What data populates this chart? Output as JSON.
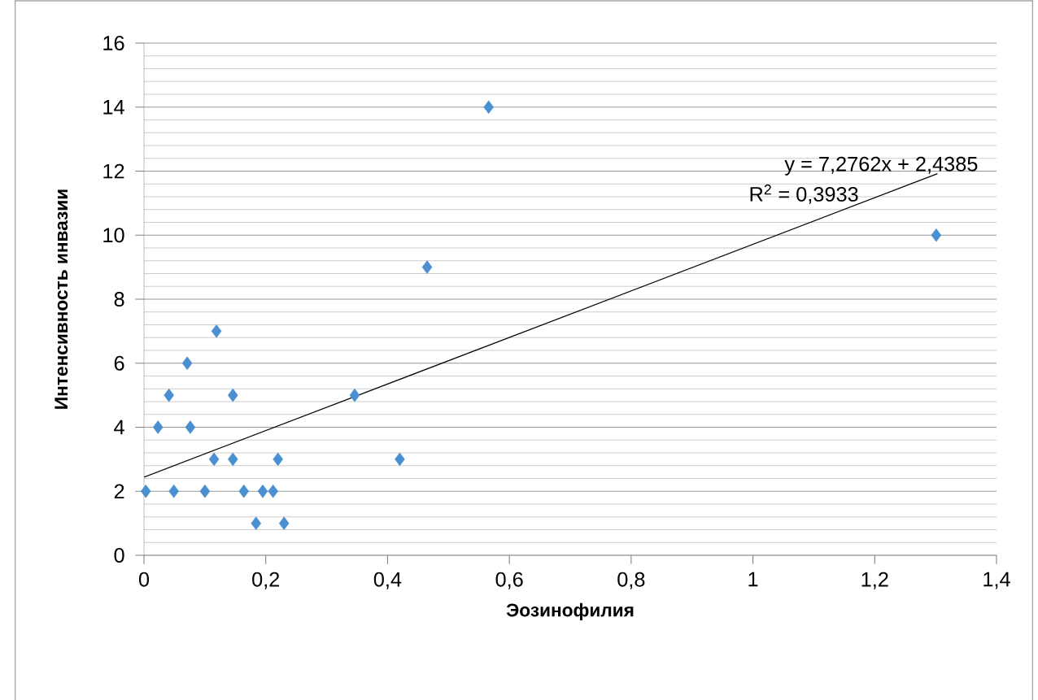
{
  "chart_data": {
    "type": "scatter",
    "xlabel": "Эозинофилия",
    "ylabel": "Интенсивность инвазии",
    "xlim": [
      0,
      1.4
    ],
    "ylim": [
      0,
      16
    ],
    "xticks": [
      0,
      {
        "value": 0.2,
        "label": "0,2"
      },
      {
        "value": 0.4,
        "label": "0,4"
      },
      {
        "value": 0.6,
        "label": "0,6"
      },
      {
        "value": 0.8,
        "label": "0,8"
      },
      1,
      {
        "value": 1.2,
        "label": "1,2"
      },
      {
        "value": 1.4,
        "label": "1,4"
      }
    ],
    "yticks": [
      0,
      2,
      4,
      6,
      8,
      10,
      12,
      14,
      16
    ],
    "grid": "y",
    "marker": "diamond",
    "annotations": [
      "y = 7,2762x + 2,4385",
      "R$^{2}$ = 0,3933"
    ],
    "series": [
      {
        "type": "scatter",
        "color": "#4a8fd0",
        "x": [
          0.003,
          0.023,
          0.041,
          0.049,
          0.071,
          0.076,
          0.1,
          0.115,
          0.119,
          0.146,
          0.146,
          0.164,
          0.184,
          0.195,
          0.212,
          0.22,
          0.23,
          0.346,
          0.42,
          0.465,
          0.566,
          1.301
        ],
        "values": [
          2,
          4,
          5,
          2,
          6,
          4,
          2,
          3,
          7,
          5,
          3,
          2,
          1,
          2,
          2,
          3,
          1,
          5,
          3,
          9,
          14,
          10
        ]
      },
      {
        "type": "line",
        "color": "#000000",
        "marker": "none",
        "line_style": "solid",
        "x": [
          0,
          1.303
        ],
        "values": [
          2.44,
          11.92
        ]
      }
    ]
  }
}
